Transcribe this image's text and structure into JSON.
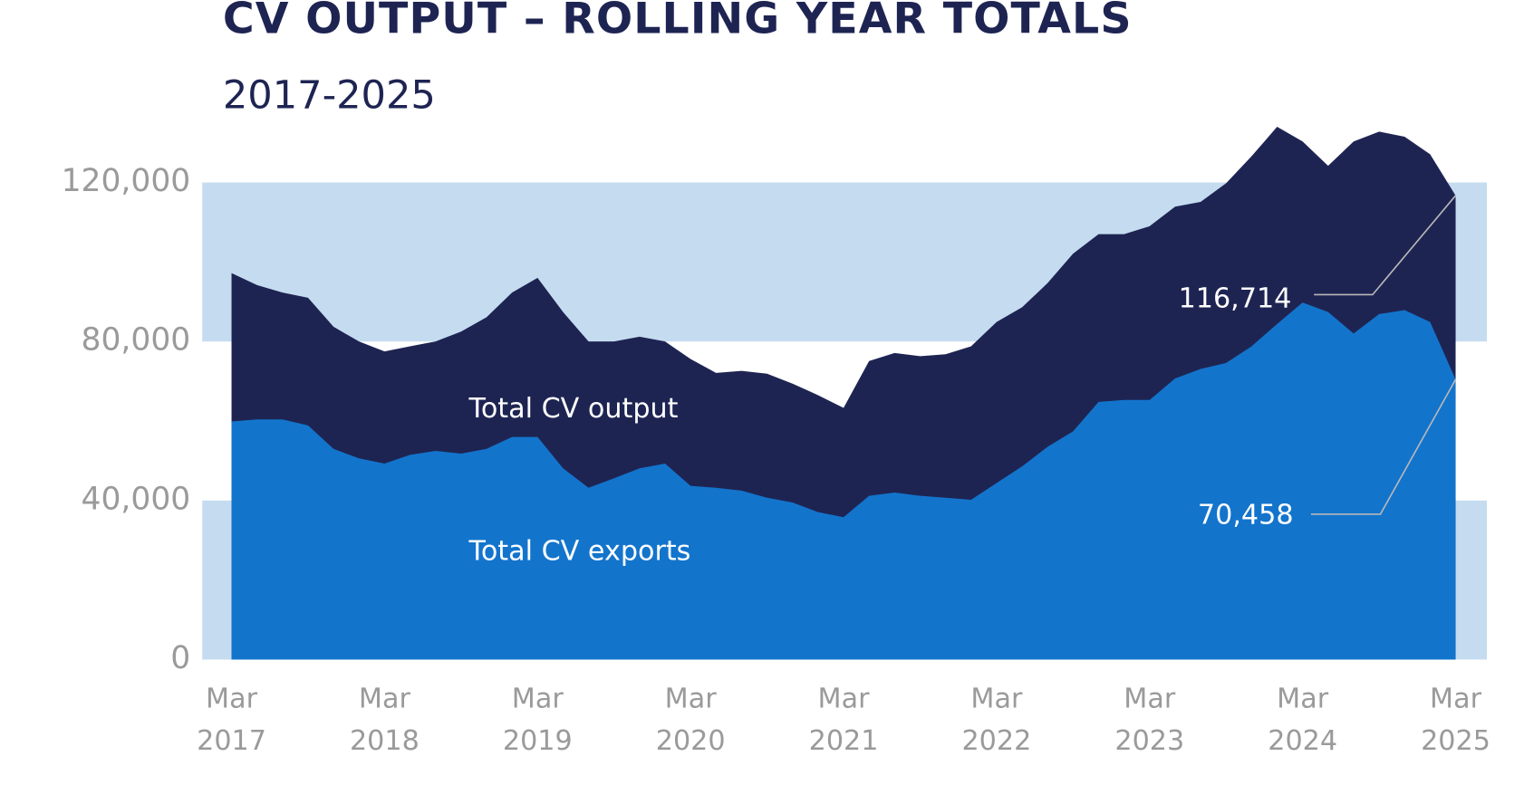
{
  "chart_data": {
    "type": "area",
    "title": "CV OUTPUT – ROLLING YEAR TOTALS",
    "subtitle": "2017-2025",
    "categories": [
      "Mar 2017",
      null,
      null,
      null,
      null,
      null,
      "Mar 2018",
      null,
      null,
      null,
      null,
      null,
      "Mar 2019",
      null,
      null,
      null,
      null,
      null,
      "Mar 2020",
      null,
      null,
      null,
      null,
      null,
      "Mar 2021",
      null,
      null,
      null,
      null,
      null,
      "Mar 2022",
      null,
      null,
      null,
      null,
      null,
      "Mar 2023",
      null,
      null,
      null,
      null,
      null,
      "Mar 2024",
      null,
      null,
      null,
      null,
      null,
      "Mar 2025"
    ],
    "series": [
      {
        "name": "Total CV output",
        "color": "#1e2452",
        "values": [
          97200,
          94200,
          92300,
          91000,
          83700,
          80000,
          77500,
          78800,
          80000,
          82500,
          86100,
          92300,
          96000,
          87400,
          80000,
          80000,
          81200,
          80000,
          75600,
          72100,
          72600,
          71900,
          69400,
          66500,
          63300,
          75100,
          77100,
          76300,
          76800,
          78800,
          84900,
          88600,
          94700,
          102100,
          107000,
          107000,
          109000,
          113900,
          115100,
          119800,
          126600,
          134000,
          130300,
          124200,
          130300,
          132800,
          131500,
          127100,
          116714
        ],
        "value_labels": [
          null,
          null,
          null,
          null,
          null,
          null,
          null,
          null,
          null,
          null,
          null,
          null,
          null,
          null,
          null,
          null,
          null,
          null,
          null,
          null,
          null,
          null,
          null,
          null,
          null,
          null,
          null,
          null,
          null,
          null,
          null,
          null,
          null,
          null,
          null,
          null,
          null,
          null,
          null,
          null,
          null,
          null,
          null,
          null,
          null,
          null,
          null,
          null,
          "116,714"
        ]
      },
      {
        "name": "Total CV exports",
        "color": "#1374cc",
        "values": [
          59900,
          60400,
          60400,
          58900,
          53000,
          50600,
          49300,
          51500,
          52500,
          51800,
          53000,
          56000,
          56000,
          48100,
          43200,
          45600,
          48100,
          49300,
          43700,
          43200,
          42500,
          40700,
          39500,
          37100,
          35800,
          41200,
          42000,
          41200,
          40700,
          40200,
          44400,
          48600,
          53500,
          57400,
          64800,
          65300,
          65300,
          70700,
          73100,
          74600,
          78800,
          84400,
          89800,
          87400,
          82000,
          86900,
          87900,
          84900,
          70458
        ],
        "value_labels": [
          null,
          null,
          null,
          null,
          null,
          null,
          null,
          null,
          null,
          null,
          null,
          null,
          null,
          null,
          null,
          null,
          null,
          null,
          null,
          null,
          null,
          null,
          null,
          null,
          null,
          null,
          null,
          null,
          null,
          null,
          null,
          null,
          null,
          null,
          null,
          null,
          null,
          null,
          null,
          null,
          null,
          null,
          null,
          null,
          null,
          null,
          null,
          null,
          "70,458"
        ]
      }
    ],
    "ylim": [
      0,
      135000
    ],
    "yticks": [
      0,
      {
        "value": 40000,
        "label": "40,000"
      },
      {
        "value": 80000,
        "label": "80,000"
      },
      {
        "value": 120000,
        "label": "120,000"
      }
    ],
    "grid": "bands",
    "band_color": "#c5dcf0"
  }
}
